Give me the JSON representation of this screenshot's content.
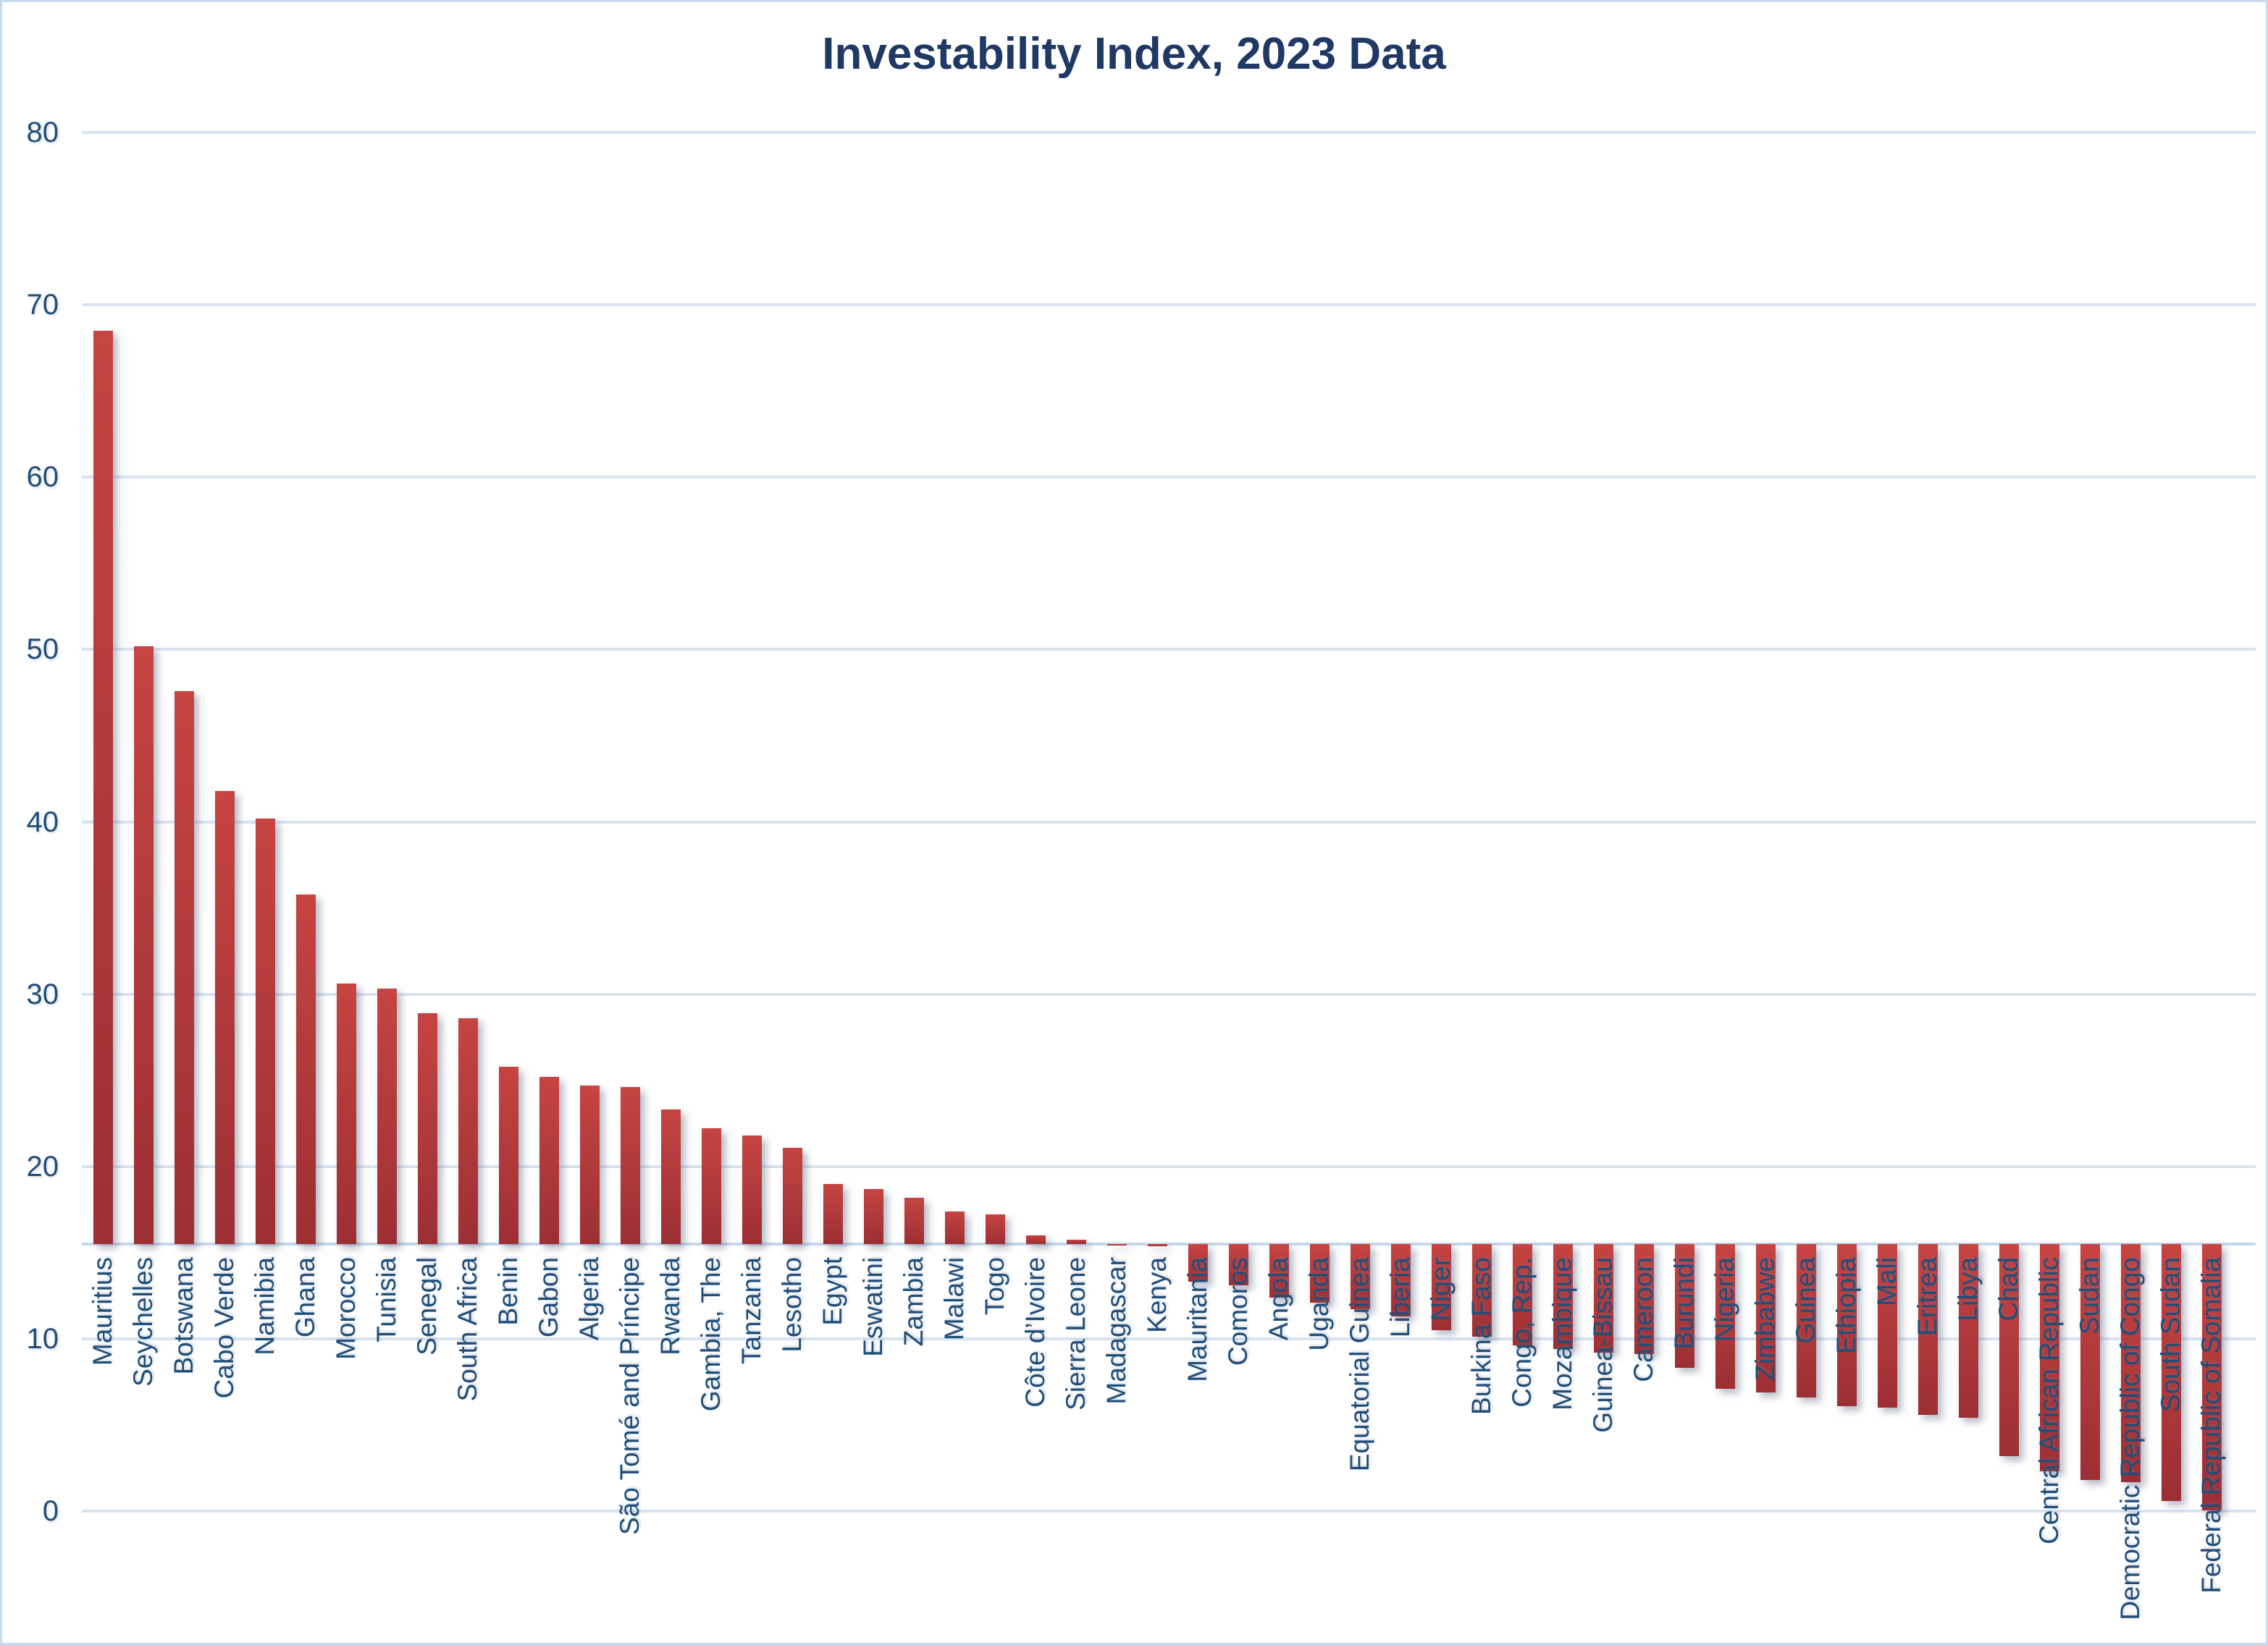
{
  "title": "Investability Index, 2023 Data",
  "colors": {
    "title": "#1F3864",
    "axis_labels": "#1F4E79",
    "gridline": "#D8E2F1",
    "axis_line": "#C6D6EA",
    "border": "#C9DAEC",
    "bar_gradient_top": "#C64442",
    "bar_gradient_bottom": "#9C2F34"
  },
  "chart_data": {
    "type": "bar",
    "title": "Investability Index, 2023 Data",
    "xlabel": "",
    "ylabel": "",
    "ylim": [
      0,
      80
    ],
    "yticks": [
      0,
      10,
      20,
      30,
      40,
      50,
      60,
      70,
      80
    ],
    "grid": true,
    "legend": "none",
    "baseline": 15.5,
    "bar_orientation": "vertical",
    "note": "bars are drawn from a category-axis baseline at 15.5; values above rise, values below hang downward",
    "categories": [
      "Mauritius",
      "Seychelles",
      "Botswana",
      "Cabo Verde",
      "Namibia",
      "Ghana",
      "Morocco",
      "Tunisia",
      "Senegal",
      "South Africa",
      "Benin",
      "Gabon",
      "Algeria",
      "São Tomé and Príncipe",
      "Rwanda",
      "Gambia, The",
      "Tanzania",
      "Lesotho",
      "Egypt",
      "Eswatini",
      "Zambia",
      "Malawi",
      "Togo",
      "Côte d’Ivoire",
      "Sierra Leone",
      "Madagascar",
      "Kenya",
      "Mauritania",
      "Comoros",
      "Angola",
      "Uganda",
      "Equatorial Guinea",
      "Liberia",
      "Niger",
      "Burkina Faso",
      "Congo, Rep.",
      "Mozambique",
      "Guinea-Bissau",
      "Cameroon",
      "Burundi",
      "Nigeria",
      "Zimbabwe",
      "Guinea",
      "Ethiopia",
      "Mali",
      "Eritrea",
      "Libya",
      "Chad",
      "Central African Republic",
      "Sudan",
      "Democratic Republic of Congo",
      "South Sudan",
      "Federal Republic of Somalia"
    ],
    "values": [
      68.5,
      50.2,
      47.6,
      41.8,
      40.2,
      35.8,
      30.6,
      30.3,
      28.9,
      28.6,
      25.8,
      25.2,
      24.7,
      24.6,
      23.3,
      22.2,
      21.8,
      21.1,
      19.0,
      18.7,
      18.2,
      17.4,
      17.2,
      16.0,
      15.75,
      15.42,
      15.35,
      13.3,
      13.1,
      12.4,
      12.1,
      11.7,
      11.3,
      10.5,
      10.1,
      9.6,
      9.4,
      9.2,
      9.1,
      8.3,
      7.1,
      6.9,
      6.6,
      6.1,
      6.0,
      5.6,
      5.4,
      3.2,
      2.3,
      1.8,
      1.7,
      0.6,
      0.05
    ]
  }
}
